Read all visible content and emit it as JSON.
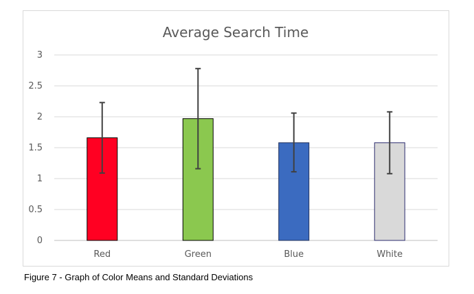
{
  "chart_data": {
    "type": "bar",
    "title": "Average Search Time",
    "categories": [
      "Red",
      "Green",
      "Blue",
      "White"
    ],
    "values": [
      1.66,
      1.97,
      1.58,
      1.58
    ],
    "error_bars": {
      "low": [
        1.09,
        1.16,
        1.11,
        1.08
      ],
      "high": [
        2.23,
        2.78,
        2.06,
        2.08
      ]
    },
    "colors": [
      "#ff0022",
      "#8bc84f",
      "#3b6bc0",
      "#d9d9d9"
    ],
    "border_colors": [
      "#000000",
      "#000000",
      "#1f2f5a",
      "#2c2c6e"
    ],
    "ylim": [
      0,
      3
    ],
    "yticks": [
      "0",
      "0.5",
      "1",
      "1.5",
      "2",
      "2.5",
      "3"
    ],
    "ytick_values": [
      0,
      0.5,
      1,
      1.5,
      2,
      2.5,
      3
    ],
    "grid": true,
    "xlabel": "",
    "ylabel": ""
  },
  "caption": "Figure 7 - Graph of Color Means and Standard Deviations"
}
